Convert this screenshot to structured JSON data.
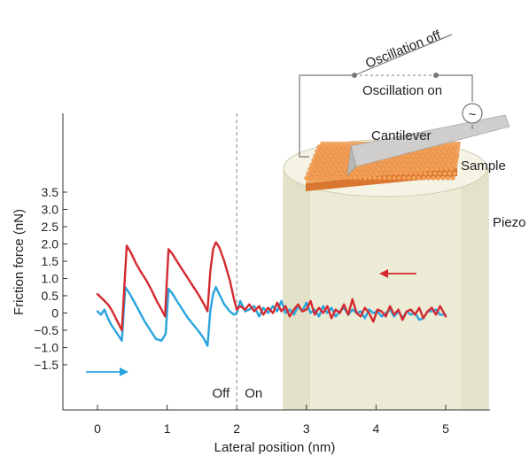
{
  "chart_data": {
    "type": "line",
    "xlabel": "Lateral position (nm)",
    "ylabel": "Friction force (nN)",
    "xlim": [
      -0.75,
      5.85
    ],
    "ylim": [
      -1.6,
      3.5
    ],
    "x_ticks": [
      "0",
      "1",
      "2",
      "3",
      "4",
      "5"
    ],
    "y_ticks": [
      "3.5",
      "3.0",
      "2.5",
      "2.0",
      "1.5",
      "1.0",
      "0.5",
      "0",
      "−0.5",
      "−1.0",
      "−1.5"
    ],
    "divider_x": 2,
    "series": [
      {
        "color": "#d42a2f",
        "x": [
          0,
          0.05,
          0.1,
          0.15,
          0.2,
          0.25,
          0.3,
          0.35,
          0.42,
          0.48,
          0.55,
          0.62,
          0.7,
          0.78,
          0.85,
          0.92,
          0.97,
          1.02,
          1.08,
          1.14,
          1.22,
          1.3,
          1.38,
          1.46,
          1.53,
          1.58,
          1.62,
          1.66,
          1.7,
          1.75,
          1.82,
          1.9,
          1.96,
          2.0,
          2.05,
          2.12,
          2.18,
          2.25,
          2.32,
          2.38,
          2.45,
          2.52,
          2.58,
          2.64,
          2.7,
          2.76,
          2.82,
          2.88,
          2.94,
          3.0,
          3.06,
          3.12,
          3.18,
          3.24,
          3.3,
          3.36,
          3.42,
          3.48,
          3.54,
          3.6,
          3.66,
          3.72,
          3.78,
          3.84,
          3.9,
          3.96,
          4.02,
          4.08,
          4.14,
          4.2,
          4.26,
          4.32,
          4.38,
          4.44,
          4.5,
          4.56,
          4.62,
          4.68,
          4.74,
          4.8,
          4.86,
          4.92,
          5.0
        ],
        "y": [
          0.55,
          0.45,
          0.35,
          0.25,
          0.1,
          -0.1,
          -0.3,
          -0.5,
          1.95,
          1.75,
          1.45,
          1.2,
          0.95,
          0.65,
          0.35,
          0.1,
          -0.1,
          1.85,
          1.7,
          1.5,
          1.25,
          1.0,
          0.75,
          0.5,
          0.25,
          0.05,
          1.2,
          1.85,
          2.05,
          1.9,
          1.5,
          0.95,
          0.4,
          0.1,
          0.2,
          0.1,
          0.25,
          0.05,
          0.2,
          -0.05,
          0.15,
          0.0,
          0.3,
          0.05,
          0.2,
          -0.1,
          0.1,
          0.25,
          0.05,
          0.1,
          0.35,
          -0.05,
          0.15,
          0.0,
          0.2,
          -0.15,
          0.1,
          0.0,
          0.25,
          -0.05,
          0.4,
          0.0,
          -0.1,
          0.15,
          0.0,
          -0.25,
          0.1,
          0.05,
          -0.1,
          0.2,
          -0.05,
          0.1,
          -0.2,
          0.05,
          0.1,
          -0.05,
          0.15,
          -0.15,
          0.05,
          0.15,
          -0.05,
          0.2,
          -0.1
        ]
      },
      {
        "color": "#29a3dd",
        "x": [
          0,
          0.05,
          0.1,
          0.15,
          0.2,
          0.25,
          0.3,
          0.35,
          0.4,
          0.45,
          0.52,
          0.6,
          0.68,
          0.76,
          0.84,
          0.92,
          0.98,
          1.02,
          1.08,
          1.14,
          1.22,
          1.3,
          1.38,
          1.46,
          1.53,
          1.58,
          1.62,
          1.66,
          1.7,
          1.76,
          1.82,
          1.9,
          1.96,
          2.0,
          2.05,
          2.12,
          2.18,
          2.25,
          2.32,
          2.38,
          2.45,
          2.52,
          2.58,
          2.64,
          2.7,
          2.76,
          2.82,
          2.88,
          2.94,
          3.0,
          3.06,
          3.12,
          3.18,
          3.24,
          3.3,
          3.36,
          3.42,
          3.48,
          3.54,
          3.6,
          3.66,
          3.72,
          3.78,
          3.84,
          3.9,
          3.96,
          4.02,
          4.08,
          4.14,
          4.2,
          4.26,
          4.32,
          4.38,
          4.44,
          4.5,
          4.56,
          4.62,
          4.68,
          4.74,
          4.8,
          4.86,
          4.92,
          5.0
        ],
        "y": [
          0.05,
          -0.05,
          0.1,
          -0.15,
          -0.35,
          -0.5,
          -0.65,
          -0.8,
          0.75,
          0.6,
          0.35,
          0.05,
          -0.25,
          -0.5,
          -0.75,
          -0.8,
          -0.6,
          0.7,
          0.55,
          0.35,
          0.1,
          -0.15,
          -0.35,
          -0.55,
          -0.75,
          -0.95,
          0.05,
          0.55,
          0.75,
          0.5,
          0.25,
          0.05,
          -0.05,
          0.0,
          0.35,
          0.05,
          0.1,
          0.2,
          -0.1,
          0.15,
          0.0,
          0.2,
          0.05,
          0.35,
          0.0,
          0.1,
          -0.05,
          0.2,
          0.05,
          0.3,
          0.0,
          0.1,
          -0.1,
          0.2,
          0.0,
          0.15,
          -0.1,
          0.05,
          0.15,
          -0.05,
          0.1,
          0.0,
          0.05,
          -0.15,
          0.1,
          0.0,
          0.05,
          -0.1,
          0.0,
          0.1,
          -0.1,
          0.05,
          -0.15,
          0.05,
          -0.05,
          0.0,
          -0.2,
          -0.15,
          0.05,
          0.05,
          0.1,
          -0.05,
          -0.05
        ]
      }
    ],
    "annotations": {
      "off": "Off",
      "on": "On",
      "cantilever": "Cantilever",
      "sample": "Sample",
      "piezo": "Piezo",
      "oscillation_off": "Oscillation off",
      "oscillation_on": "Oscillation on",
      "oscillator_symbol": "~"
    },
    "colors": {
      "red_series": "#d42a2f",
      "blue_series": "#29a3dd",
      "piezo_fill": "#ecebd6",
      "sample": "#ef8d3e",
      "cantilever": "#c9c8c6"
    },
    "grid": false
  }
}
